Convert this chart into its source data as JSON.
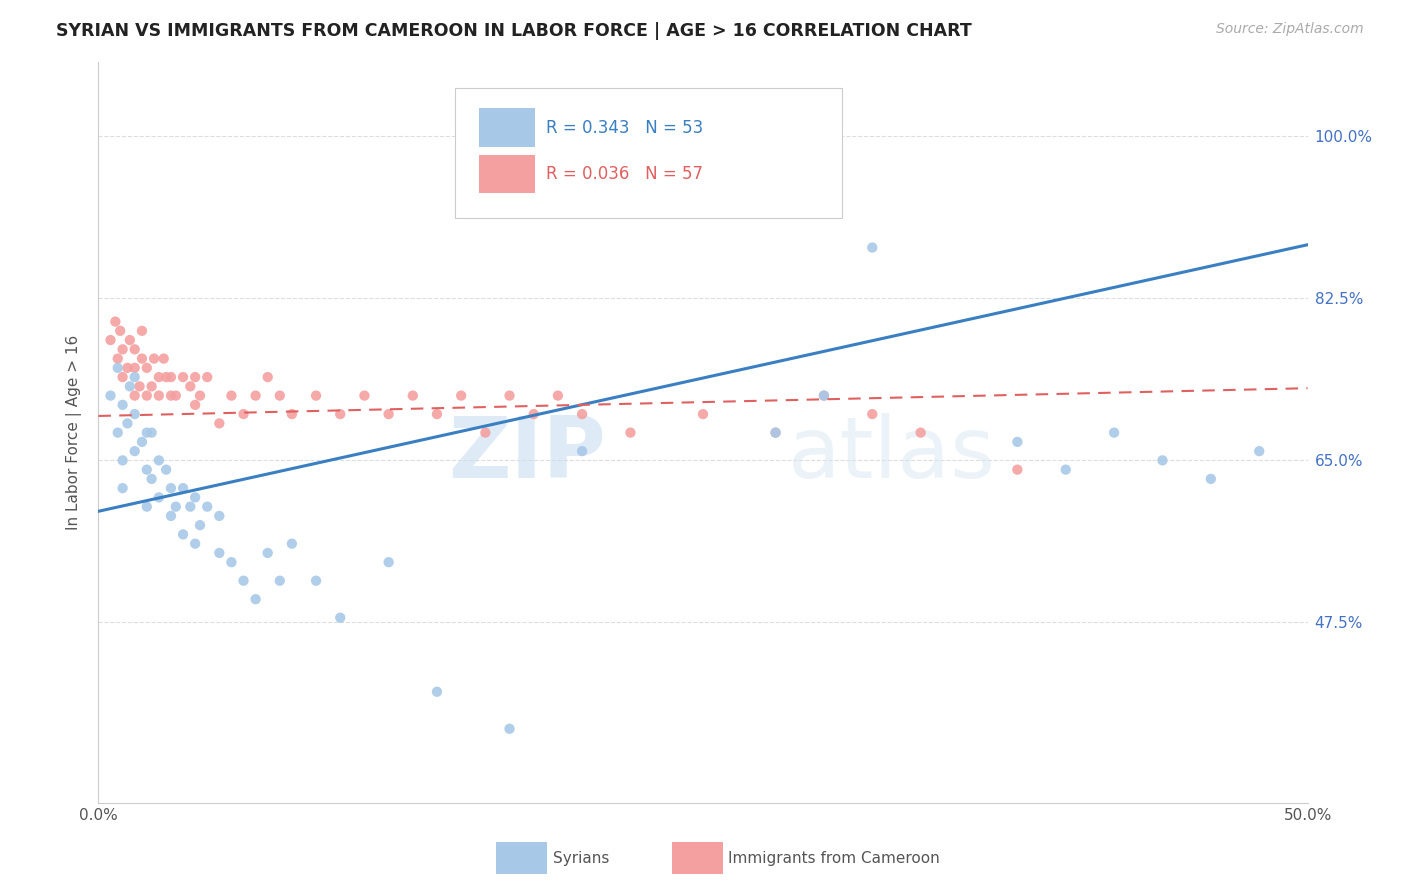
{
  "title": "SYRIAN VS IMMIGRANTS FROM CAMEROON IN LABOR FORCE | AGE > 16 CORRELATION CHART",
  "source": "Source: ZipAtlas.com",
  "ylabel_label": "In Labor Force | Age > 16",
  "xlim": [
    0.0,
    0.5
  ],
  "ylim": [
    0.28,
    1.08
  ],
  "y_ticks": [
    0.475,
    0.65,
    0.825,
    1.0
  ],
  "y_tick_labels": [
    "47.5%",
    "65.0%",
    "82.5%",
    "100.0%"
  ],
  "syrians_color": "#a8c8e8",
  "cameroon_color": "#f4a0a0",
  "syrians_line_color": "#3a7fc1",
  "cameroon_line_color": "#e06060",
  "legend_R_syrian": "R = 0.343",
  "legend_N_syrian": "N = 53",
  "legend_R_cameroon": "R = 0.036",
  "legend_N_cameroon": "N = 57",
  "legend_label_syrian": "Syrians",
  "legend_label_cameroon": "Immigrants from Cameroon",
  "watermark_zip": "ZIP",
  "watermark_atlas": "atlas",
  "background_color": "#ffffff",
  "grid_color": "#dddddd",
  "syrian_trend_x": [
    0.0,
    0.5
  ],
  "syrian_trend_y": [
    0.595,
    0.883
  ],
  "cameroon_trend_x": [
    0.0,
    0.5
  ],
  "cameroon_trend_y": [
    0.698,
    0.728
  ],
  "syrian_x": [
    0.005,
    0.008,
    0.008,
    0.01,
    0.01,
    0.01,
    0.012,
    0.013,
    0.015,
    0.015,
    0.015,
    0.018,
    0.02,
    0.02,
    0.02,
    0.022,
    0.022,
    0.025,
    0.025,
    0.028,
    0.03,
    0.03,
    0.032,
    0.035,
    0.035,
    0.038,
    0.04,
    0.04,
    0.042,
    0.045,
    0.05,
    0.05,
    0.055,
    0.06,
    0.065,
    0.07,
    0.075,
    0.08,
    0.09,
    0.1,
    0.12,
    0.14,
    0.17,
    0.2,
    0.28,
    0.3,
    0.32,
    0.38,
    0.4,
    0.42,
    0.44,
    0.46,
    0.48
  ],
  "syrian_y": [
    0.72,
    0.68,
    0.75,
    0.62,
    0.65,
    0.71,
    0.69,
    0.73,
    0.66,
    0.7,
    0.74,
    0.67,
    0.6,
    0.64,
    0.68,
    0.63,
    0.68,
    0.61,
    0.65,
    0.64,
    0.59,
    0.62,
    0.6,
    0.57,
    0.62,
    0.6,
    0.56,
    0.61,
    0.58,
    0.6,
    0.55,
    0.59,
    0.54,
    0.52,
    0.5,
    0.55,
    0.52,
    0.56,
    0.52,
    0.48,
    0.54,
    0.4,
    0.36,
    0.66,
    0.68,
    0.72,
    0.88,
    0.67,
    0.64,
    0.68,
    0.65,
    0.63,
    0.66
  ],
  "cameroon_x": [
    0.005,
    0.007,
    0.008,
    0.009,
    0.01,
    0.01,
    0.012,
    0.013,
    0.015,
    0.015,
    0.015,
    0.017,
    0.018,
    0.018,
    0.02,
    0.02,
    0.022,
    0.023,
    0.025,
    0.025,
    0.027,
    0.028,
    0.03,
    0.03,
    0.032,
    0.035,
    0.038,
    0.04,
    0.04,
    0.042,
    0.045,
    0.05,
    0.055,
    0.06,
    0.065,
    0.07,
    0.075,
    0.08,
    0.09,
    0.1,
    0.11,
    0.12,
    0.13,
    0.14,
    0.15,
    0.16,
    0.17,
    0.18,
    0.19,
    0.2,
    0.22,
    0.25,
    0.28,
    0.3,
    0.32,
    0.34,
    0.38
  ],
  "cameroon_y": [
    0.78,
    0.8,
    0.76,
    0.79,
    0.74,
    0.77,
    0.75,
    0.78,
    0.72,
    0.75,
    0.77,
    0.73,
    0.76,
    0.79,
    0.72,
    0.75,
    0.73,
    0.76,
    0.72,
    0.74,
    0.76,
    0.74,
    0.72,
    0.74,
    0.72,
    0.74,
    0.73,
    0.71,
    0.74,
    0.72,
    0.74,
    0.69,
    0.72,
    0.7,
    0.72,
    0.74,
    0.72,
    0.7,
    0.72,
    0.7,
    0.72,
    0.7,
    0.72,
    0.7,
    0.72,
    0.68,
    0.72,
    0.7,
    0.72,
    0.7,
    0.68,
    0.7,
    0.68,
    0.72,
    0.7,
    0.68,
    0.64
  ]
}
